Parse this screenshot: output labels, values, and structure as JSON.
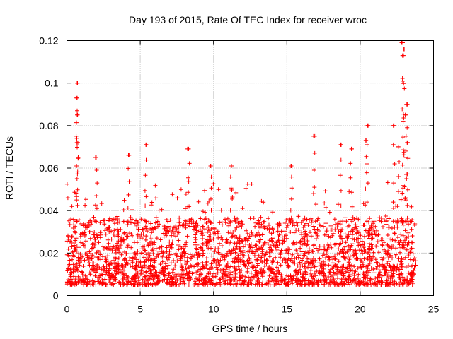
{
  "chart_data": {
    "type": "scatter",
    "title": "Day 193 of 2015, Rate Of TEC Index for receiver wroc",
    "xlabel": "GPS time / hours",
    "ylabel": "ROTI / TECUs",
    "xlim": [
      0,
      25
    ],
    "ylim": [
      0,
      0.12
    ],
    "xticks": [
      0,
      5,
      10,
      15,
      20,
      25
    ],
    "xtick_labels": [
      "0",
      "5",
      "10",
      "15",
      "20",
      "25"
    ],
    "yticks": [
      0,
      0.02,
      0.04,
      0.06,
      0.08,
      0.1,
      0.12
    ],
    "ytick_labels": [
      "0",
      "0.02",
      "0.04",
      "0.06",
      "0.08",
      "0.1",
      "0.12"
    ],
    "grid": true,
    "marker": "+",
    "color": "#ff0000",
    "series": [
      {
        "name": "ROTI",
        "description": "Dense cloud of ROTI samples between 0 and 24 h, mostly 0.005–0.035 TECU/min with isolated spikes",
        "bulk_range": [
          0.005,
          0.035
        ],
        "x_range": [
          0,
          23.8
        ],
        "highlighted_points": [
          {
            "x": 0.7,
            "y": 0.1
          },
          {
            "x": 0.7,
            "y": 0.093
          },
          {
            "x": 0.7,
            "y": 0.085
          },
          {
            "x": 0.75,
            "y": 0.072
          },
          {
            "x": 2.0,
            "y": 0.065
          },
          {
            "x": 4.2,
            "y": 0.066
          },
          {
            "x": 5.4,
            "y": 0.071
          },
          {
            "x": 8.3,
            "y": 0.069
          },
          {
            "x": 9.8,
            "y": 0.061
          },
          {
            "x": 11.2,
            "y": 0.061
          },
          {
            "x": 15.3,
            "y": 0.061
          },
          {
            "x": 16.9,
            "y": 0.075
          },
          {
            "x": 18.7,
            "y": 0.071
          },
          {
            "x": 19.4,
            "y": 0.069
          },
          {
            "x": 20.5,
            "y": 0.08
          },
          {
            "x": 20.4,
            "y": 0.073
          },
          {
            "x": 22.3,
            "y": 0.08
          },
          {
            "x": 22.9,
            "y": 0.119
          },
          {
            "x": 23.0,
            "y": 0.116
          },
          {
            "x": 22.95,
            "y": 0.113
          },
          {
            "x": 22.9,
            "y": 0.101
          },
          {
            "x": 23.15,
            "y": 0.09
          },
          {
            "x": 23.1,
            "y": 0.085
          },
          {
            "x": 23.2,
            "y": 0.072
          },
          {
            "x": 22.6,
            "y": 0.07
          }
        ]
      }
    ]
  }
}
